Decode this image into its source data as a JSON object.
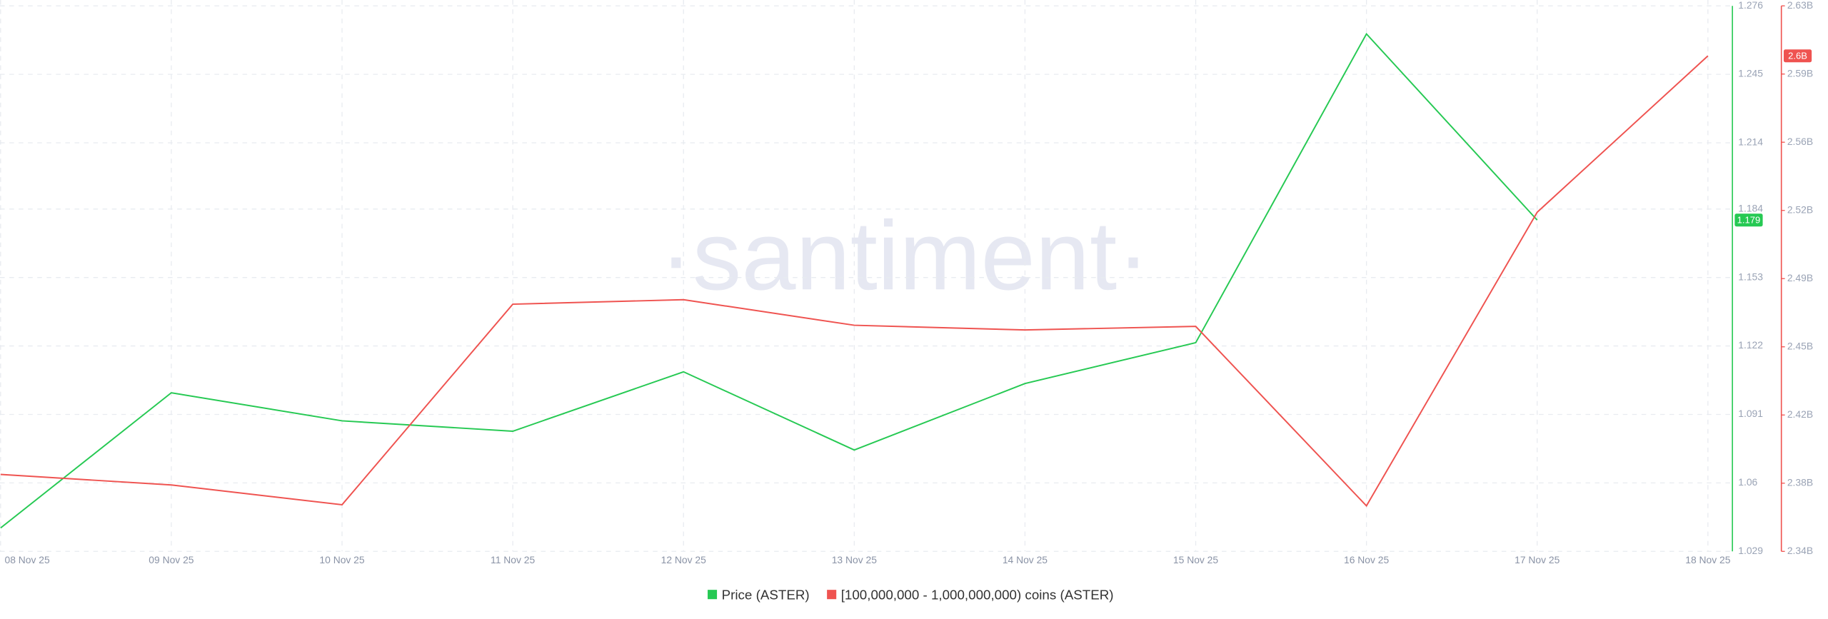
{
  "chart_data": {
    "type": "line",
    "watermark": "·santiment·",
    "categories": [
      "08 Nov 25",
      "09 Nov 25",
      "10 Nov 25",
      "11 Nov 25",
      "12 Nov 25",
      "13 Nov 25",
      "14 Nov 25",
      "15 Nov 25",
      "16 Nov 25",
      "17 Nov 25",
      "18 Nov 25"
    ],
    "series": [
      {
        "name": "Price (ASTER)",
        "color": "#26c953",
        "values": [
          1.0396,
          1.1008,
          1.0881,
          1.0834,
          1.1103,
          1.0749,
          1.105,
          1.1235,
          1.2633,
          1.179,
          null
        ],
        "value_labels": [
          null,
          null,
          null,
          null,
          null,
          null,
          null,
          null,
          null,
          "1.179",
          null
        ]
      },
      {
        "name": "[100,000,000 - 1,000,000,000) coins (ASTER)",
        "color": "#ef5350",
        "axis": "y2",
        "values": [
          2380900000,
          2375300000,
          2364800000,
          2471400000,
          2473800000,
          2460200000,
          2457700000,
          2459600000,
          2364200000,
          2520300000,
          2603400000
        ],
        "value_labels": [
          null,
          null,
          null,
          null,
          null,
          null,
          null,
          null,
          null,
          null,
          "2.6B"
        ]
      }
    ],
    "ylim": [
      1.029,
      1.276
    ],
    "yticks": [
      {
        "value": 1.029,
        "label": "1.029"
      },
      {
        "value": 1.06,
        "label": "1.06"
      },
      {
        "value": 1.091,
        "label": "1.091"
      },
      {
        "value": 1.122,
        "label": "1.122"
      },
      {
        "value": 1.153,
        "label": "1.153"
      },
      {
        "value": 1.184,
        "label": "1.184"
      },
      {
        "value": 1.214,
        "label": "1.214"
      },
      {
        "value": 1.245,
        "label": "1.245"
      },
      {
        "value": 1.276,
        "label": "1.276"
      }
    ],
    "y2lim": [
      2340000000,
      2630000000
    ],
    "y2ticks": [
      {
        "value": 2340000000,
        "label": "2.34B"
      },
      {
        "value": 2376250000,
        "label": "2.38B"
      },
      {
        "value": 2412500000,
        "label": "2.42B"
      },
      {
        "value": 2448750000,
        "label": "2.45B"
      },
      {
        "value": 2485000000,
        "label": "2.49B"
      },
      {
        "value": 2521250000,
        "label": "2.52B"
      },
      {
        "value": 2557500000,
        "label": "2.56B"
      },
      {
        "value": 2593750000,
        "label": "2.59B"
      },
      {
        "value": 2630000000,
        "label": "2.63B"
      }
    ],
    "grid": true
  }
}
